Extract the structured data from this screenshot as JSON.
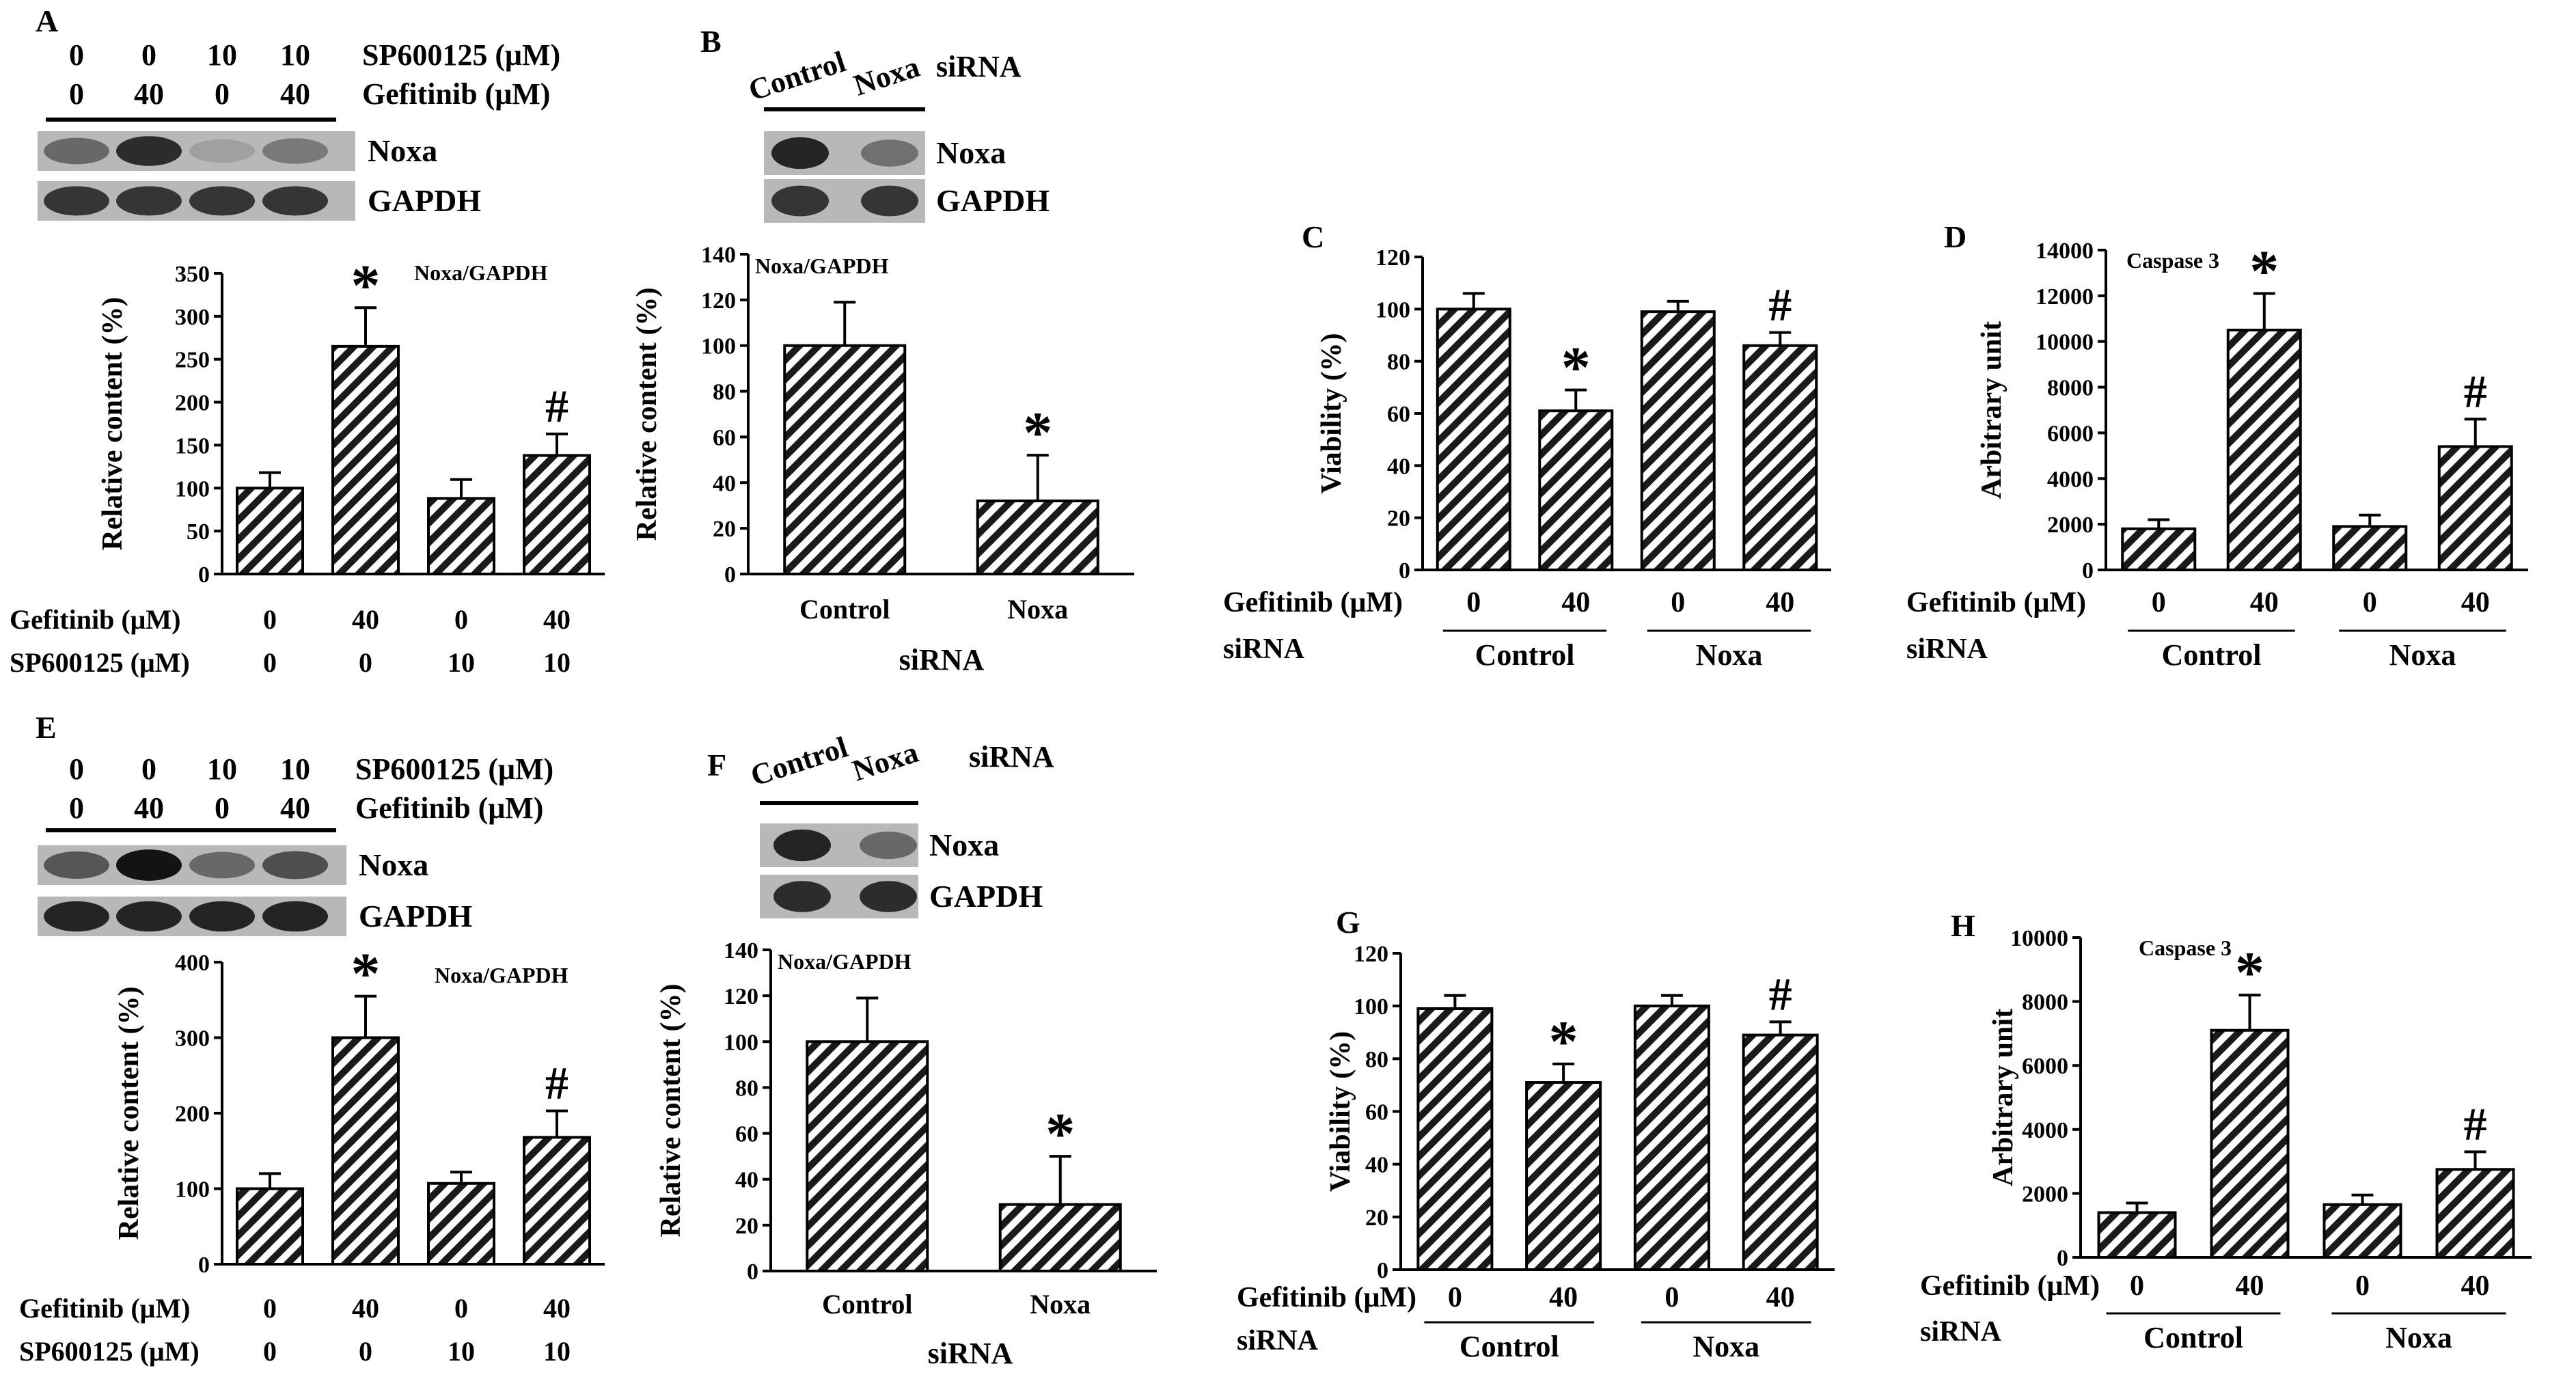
{
  "figure": {
    "panels": [
      {
        "id": "A",
        "label": "A",
        "blot": {
          "lane_rows": [
            {
              "values": [
                "0",
                "0",
                "10",
                "10"
              ],
              "label": "SP600125 (μM)"
            },
            {
              "values": [
                "0",
                "40",
                "0",
                "40"
              ],
              "label": "Gefitinib (μM)"
            }
          ],
          "bands": [
            {
              "name": "Noxa",
              "intensity": [
                0.45,
                0.8,
                0.12,
                0.35
              ]
            },
            {
              "name": "GAPDH",
              "intensity": [
                0.75,
                0.75,
                0.75,
                0.75
              ]
            }
          ]
        },
        "chart": {
          "type": "bar",
          "title": "Noxa/GAPDH",
          "ylabel": "Relative content (%)",
          "ylim": [
            0,
            350
          ],
          "yticks": [
            0,
            50,
            100,
            150,
            200,
            250,
            300,
            350
          ],
          "values": [
            100,
            265,
            88,
            138
          ],
          "errors": [
            18,
            45,
            22,
            25
          ],
          "annotations": [
            "",
            "*",
            "",
            "#"
          ],
          "xrows": [
            {
              "label": "Gefitinib (μM)",
              "values": [
                "0",
                "40",
                "0",
                "40"
              ]
            },
            {
              "label": "SP600125 (μM)",
              "values": [
                "0",
                "0",
                "10",
                "10"
              ]
            }
          ]
        }
      },
      {
        "id": "B",
        "label": "B",
        "blot": {
          "headers": [
            "Control",
            "Noxa"
          ],
          "header_label": "siRNA",
          "bands": [
            {
              "name": "Noxa",
              "intensity": [
                0.85,
                0.4
              ]
            },
            {
              "name": "GAPDH",
              "intensity": [
                0.75,
                0.75
              ]
            }
          ]
        },
        "chart": {
          "type": "bar",
          "title": "Noxa/GAPDH",
          "ylabel": "Relative content (%)",
          "ylim": [
            0,
            140
          ],
          "yticks": [
            0,
            20,
            40,
            60,
            80,
            100,
            120,
            140
          ],
          "values": [
            100,
            32
          ],
          "errors": [
            19,
            20
          ],
          "annotations": [
            "",
            "*"
          ],
          "categories": [
            "Control",
            "Noxa"
          ],
          "xlabel": "siRNA"
        }
      },
      {
        "id": "C",
        "label": "C",
        "chart": {
          "type": "bar",
          "title": "",
          "ylabel": "Viability (%)",
          "ylim": [
            0,
            120
          ],
          "yticks": [
            0,
            20,
            40,
            60,
            80,
            100,
            120
          ],
          "values": [
            100,
            61,
            99,
            86
          ],
          "errors": [
            6,
            8,
            4,
            5
          ],
          "annotations": [
            "",
            "*",
            "",
            "#"
          ],
          "row_label": "Gefitinib (μM)",
          "row_values": [
            "0",
            "40",
            "0",
            "40"
          ],
          "group_label": "siRNA",
          "groups": [
            "Control",
            "Noxa"
          ]
        }
      },
      {
        "id": "D",
        "label": "D",
        "chart": {
          "type": "bar",
          "title": "Caspase 3",
          "ylabel": "Arbitrary unit",
          "ylim": [
            0,
            14000
          ],
          "yticks": [
            0,
            2000,
            4000,
            6000,
            8000,
            10000,
            12000,
            14000
          ],
          "values": [
            1800,
            10500,
            1900,
            5400
          ],
          "errors": [
            400,
            1600,
            500,
            1200
          ],
          "annotations": [
            "",
            "*",
            "",
            "#"
          ],
          "row_label": "Gefitinib (μM)",
          "row_values": [
            "0",
            "40",
            "0",
            "40"
          ],
          "group_label": "siRNA",
          "groups": [
            "Control",
            "Noxa"
          ]
        }
      },
      {
        "id": "E",
        "label": "E",
        "blot": {
          "lane_rows": [
            {
              "values": [
                "0",
                "0",
                "10",
                "10"
              ],
              "label": "SP600125 (μM)"
            },
            {
              "values": [
                "0",
                "40",
                "0",
                "40"
              ],
              "label": "Gefitinib (μM)"
            }
          ],
          "bands": [
            {
              "name": "Noxa",
              "intensity": [
                0.55,
                0.95,
                0.45,
                0.6
              ]
            },
            {
              "name": "GAPDH",
              "intensity": [
                0.85,
                0.85,
                0.85,
                0.85
              ]
            }
          ]
        },
        "chart": {
          "type": "bar",
          "title": "Noxa/GAPDH",
          "ylabel": "Relative content (%)",
          "ylim": [
            0,
            400
          ],
          "yticks": [
            0,
            100,
            200,
            300,
            400
          ],
          "values": [
            100,
            300,
            107,
            168
          ],
          "errors": [
            20,
            55,
            15,
            35
          ],
          "annotations": [
            "",
            "*",
            "",
            "#"
          ],
          "xrows": [
            {
              "label": "Gefitinib (μM)",
              "values": [
                "0",
                "40",
                "0",
                "40"
              ]
            },
            {
              "label": "SP600125 (μM)",
              "values": [
                "0",
                "0",
                "10",
                "10"
              ]
            }
          ]
        }
      },
      {
        "id": "F",
        "label": "F",
        "blot": {
          "headers": [
            "Control",
            "Noxa"
          ],
          "header_label": "siRNA",
          "bands": [
            {
              "name": "Noxa",
              "intensity": [
                0.85,
                0.45
              ]
            },
            {
              "name": "GAPDH",
              "intensity": [
                0.8,
                0.8
              ]
            }
          ]
        },
        "chart": {
          "type": "bar",
          "title": "Noxa/GAPDH",
          "ylabel": "Relative content (%)",
          "ylim": [
            0,
            140
          ],
          "yticks": [
            0,
            20,
            40,
            60,
            80,
            100,
            120,
            140
          ],
          "values": [
            100,
            29
          ],
          "errors": [
            19,
            21
          ],
          "annotations": [
            "",
            "*"
          ],
          "categories": [
            "Control",
            "Noxa"
          ],
          "xlabel": "siRNA"
        }
      },
      {
        "id": "G",
        "label": "G",
        "chart": {
          "type": "bar",
          "title": "",
          "ylabel": "Viability (%)",
          "ylim": [
            0,
            120
          ],
          "yticks": [
            0,
            20,
            40,
            60,
            80,
            100,
            120
          ],
          "values": [
            99,
            71,
            100,
            89
          ],
          "errors": [
            5,
            7,
            4,
            5
          ],
          "annotations": [
            "",
            "*",
            "",
            "#"
          ],
          "row_label": "Gefitinib (μM)",
          "row_values": [
            "0",
            "40",
            "0",
            "40"
          ],
          "group_label": "siRNA",
          "groups": [
            "Control",
            "Noxa"
          ]
        }
      },
      {
        "id": "H",
        "label": "H",
        "chart": {
          "type": "bar",
          "title": "Caspase 3",
          "ylabel": "Arbitrary unit",
          "ylim": [
            0,
            10000
          ],
          "yticks": [
            0,
            2000,
            4000,
            6000,
            8000,
            10000
          ],
          "values": [
            1400,
            7100,
            1650,
            2750
          ],
          "errors": [
            300,
            1100,
            300,
            550
          ],
          "annotations": [
            "",
            "*",
            "",
            "#"
          ],
          "row_label": "Gefitinib (μM)",
          "row_values": [
            "0",
            "40",
            "0",
            "40"
          ],
          "group_label": "siRNA",
          "groups": [
            "Control",
            "Noxa"
          ]
        }
      }
    ]
  },
  "chart_data": [
    {
      "panel": "A",
      "type": "bar",
      "title": "Noxa/GAPDH",
      "ylabel": "Relative content (%)",
      "ylim": [
        0,
        350
      ],
      "categories": [
        "Gefitinib 0 / SP600125 0",
        "Gefitinib 40 / SP600125 0",
        "Gefitinib 0 / SP600125 10",
        "Gefitinib 40 / SP600125 10"
      ],
      "values": [
        100,
        265,
        88,
        138
      ],
      "errors": [
        18,
        45,
        22,
        25
      ]
    },
    {
      "panel": "B",
      "type": "bar",
      "title": "Noxa/GAPDH",
      "xlabel": "siRNA",
      "ylabel": "Relative content (%)",
      "ylim": [
        0,
        140
      ],
      "categories": [
        "Control",
        "Noxa"
      ],
      "values": [
        100,
        32
      ],
      "errors": [
        19,
        20
      ]
    },
    {
      "panel": "C",
      "type": "bar",
      "ylabel": "Viability (%)",
      "ylim": [
        0,
        120
      ],
      "categories": [
        "Control 0",
        "Control 40",
        "Noxa 0",
        "Noxa 40"
      ],
      "values": [
        100,
        61,
        99,
        86
      ],
      "errors": [
        6,
        8,
        4,
        5
      ]
    },
    {
      "panel": "D",
      "type": "bar",
      "title": "Caspase 3",
      "ylabel": "Arbitrary unit",
      "ylim": [
        0,
        14000
      ],
      "categories": [
        "Control 0",
        "Control 40",
        "Noxa 0",
        "Noxa 40"
      ],
      "values": [
        1800,
        10500,
        1900,
        5400
      ],
      "errors": [
        400,
        1600,
        500,
        1200
      ]
    },
    {
      "panel": "E",
      "type": "bar",
      "title": "Noxa/GAPDH",
      "ylabel": "Relative content (%)",
      "ylim": [
        0,
        400
      ],
      "categories": [
        "Gefitinib 0 / SP600125 0",
        "Gefitinib 40 / SP600125 0",
        "Gefitinib 0 / SP600125 10",
        "Gefitinib 40 / SP600125 10"
      ],
      "values": [
        100,
        300,
        107,
        168
      ],
      "errors": [
        20,
        55,
        15,
        35
      ]
    },
    {
      "panel": "F",
      "type": "bar",
      "title": "Noxa/GAPDH",
      "xlabel": "siRNA",
      "ylabel": "Relative content (%)",
      "ylim": [
        0,
        140
      ],
      "categories": [
        "Control",
        "Noxa"
      ],
      "values": [
        100,
        29
      ],
      "errors": [
        19,
        21
      ]
    },
    {
      "panel": "G",
      "type": "bar",
      "ylabel": "Viability (%)",
      "ylim": [
        0,
        120
      ],
      "categories": [
        "Control 0",
        "Control 40",
        "Noxa 0",
        "Noxa 40"
      ],
      "values": [
        99,
        71,
        100,
        89
      ],
      "errors": [
        5,
        7,
        4,
        5
      ]
    },
    {
      "panel": "H",
      "type": "bar",
      "title": "Caspase 3",
      "ylabel": "Arbitrary unit",
      "ylim": [
        0,
        10000
      ],
      "categories": [
        "Control 0",
        "Control 40",
        "Noxa 0",
        "Noxa 40"
      ],
      "values": [
        1400,
        7100,
        1650,
        2750
      ],
      "errors": [
        300,
        1100,
        300,
        550
      ]
    }
  ]
}
